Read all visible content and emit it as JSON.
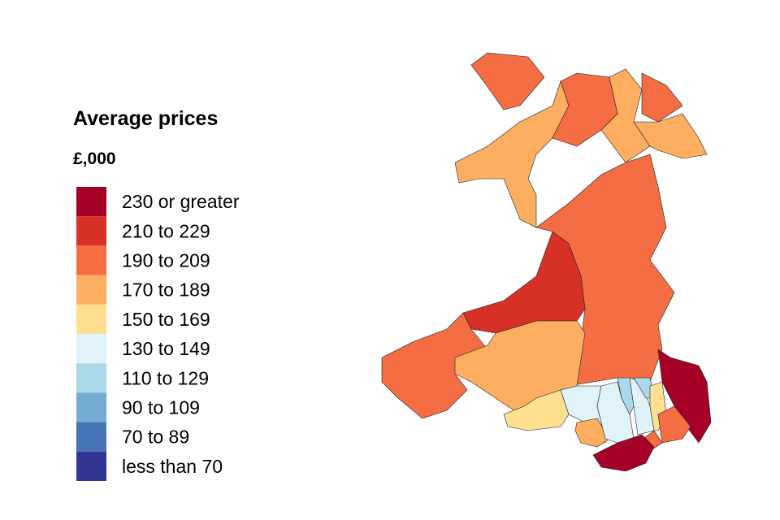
{
  "legend": {
    "title": "Average prices",
    "subtitle": "£,000",
    "items": [
      {
        "label": "230 or greater",
        "color": "#a50026"
      },
      {
        "label": "210 to 229",
        "color": "#d73027"
      },
      {
        "label": "190 to 209",
        "color": "#f46d43"
      },
      {
        "label": "170 to 189",
        "color": "#fdae61"
      },
      {
        "label": "150 to 169",
        "color": "#fee090"
      },
      {
        "label": "130 to 149",
        "color": "#e0f3f8"
      },
      {
        "label": "110 to 129",
        "color": "#abd9e9"
      },
      {
        "label": "90 to 109",
        "color": "#74add1"
      },
      {
        "label": "70 to 89",
        "color": "#4575b4"
      },
      {
        "label": "less than 70",
        "color": "#313695"
      }
    ]
  }
}
